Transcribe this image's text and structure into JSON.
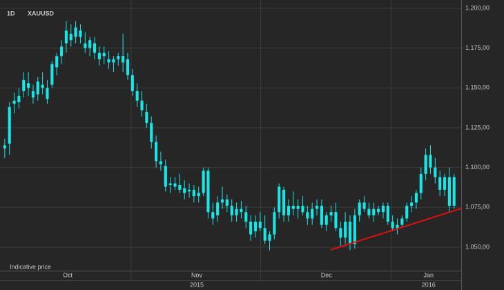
{
  "chart_data": {
    "type": "candlestick",
    "title": "XAUUSD",
    "timeframe": "1D",
    "note": "Indicative price",
    "color": "#19e6e6",
    "grid": true,
    "candles": [
      [
        1.112,
        1.118,
        1.106,
        1.114
      ],
      [
        1.115,
        1.141,
        1.108,
        1.138
      ],
      [
        1.14,
        1.147,
        1.134,
        1.142
      ],
      [
        1.141,
        1.15,
        1.137,
        1.145
      ],
      [
        1.148,
        1.16,
        1.144,
        1.155
      ],
      [
        1.153,
        1.16,
        1.145,
        1.15
      ],
      [
        1.148,
        1.152,
        1.14,
        1.144
      ],
      [
        1.146,
        1.157,
        1.142,
        1.154
      ],
      [
        1.152,
        1.16,
        1.146,
        1.15
      ],
      [
        1.143,
        1.155,
        1.14,
        1.15
      ],
      [
        1.152,
        1.167,
        1.15,
        1.165
      ],
      [
        1.163,
        1.172,
        1.158,
        1.17
      ],
      [
        1.17,
        1.18,
        1.165,
        1.176
      ],
      [
        1.178,
        1.192,
        1.172,
        1.186
      ],
      [
        1.184,
        1.19,
        1.176,
        1.18
      ],
      [
        1.182,
        1.192,
        1.178,
        1.188
      ],
      [
        1.186,
        1.19,
        1.178,
        1.182
      ],
      [
        1.178,
        1.185,
        1.172,
        1.175
      ],
      [
        1.175,
        1.182,
        1.17,
        1.18
      ],
      [
        1.178,
        1.182,
        1.168,
        1.172
      ],
      [
        1.172,
        1.176,
        1.164,
        1.168
      ],
      [
        1.17,
        1.176,
        1.165,
        1.172
      ],
      [
        1.168,
        1.173,
        1.162,
        1.166
      ],
      [
        1.166,
        1.17,
        1.16,
        1.168
      ],
      [
        1.168,
        1.172,
        1.164,
        1.17
      ],
      [
        1.166,
        1.184,
        1.16,
        1.17
      ],
      [
        1.168,
        1.172,
        1.155,
        1.158
      ],
      [
        1.158,
        1.162,
        1.145,
        1.148
      ],
      [
        1.148,
        1.153,
        1.138,
        1.142
      ],
      [
        1.142,
        1.148,
        1.132,
        1.136
      ],
      [
        1.135,
        1.14,
        1.125,
        1.128
      ],
      [
        1.128,
        1.132,
        1.112,
        1.116
      ],
      [
        1.116,
        1.12,
        1.1,
        1.104
      ],
      [
        1.104,
        1.11,
        1.098,
        1.102
      ],
      [
        1.101,
        1.105,
        1.085,
        1.088
      ],
      [
        1.089,
        1.094,
        1.084,
        1.09
      ],
      [
        1.09,
        1.094,
        1.086,
        1.088
      ],
      [
        1.089,
        1.096,
        1.084,
        1.086
      ],
      [
        1.087,
        1.092,
        1.08,
        1.084
      ],
      [
        1.085,
        1.09,
        1.081,
        1.086
      ],
      [
        1.086,
        1.089,
        1.078,
        1.082
      ],
      [
        1.082,
        1.088,
        1.078,
        1.084
      ],
      [
        1.084,
        1.1,
        1.082,
        1.098
      ],
      [
        1.098,
        1.1,
        1.068,
        1.072
      ],
      [
        1.072,
        1.078,
        1.064,
        1.068
      ],
      [
        1.07,
        1.082,
        1.066,
        1.078
      ],
      [
        1.078,
        1.088,
        1.074,
        1.08
      ],
      [
        1.08,
        1.083,
        1.072,
        1.076
      ],
      [
        1.076,
        1.08,
        1.066,
        1.07
      ],
      [
        1.07,
        1.078,
        1.066,
        1.074
      ],
      [
        1.074,
        1.079,
        1.068,
        1.072
      ],
      [
        1.072,
        1.076,
        1.062,
        1.066
      ],
      [
        1.066,
        1.07,
        1.054,
        1.058
      ],
      [
        1.06,
        1.07,
        1.056,
        1.066
      ],
      [
        1.066,
        1.072,
        1.06,
        1.062
      ],
      [
        1.062,
        1.07,
        1.052,
        1.054
      ],
      [
        1.054,
        1.06,
        1.048,
        1.058
      ],
      [
        1.058,
        1.075,
        1.055,
        1.072
      ],
      [
        1.072,
        1.09,
        1.068,
        1.088
      ],
      [
        1.086,
        1.088,
        1.066,
        1.07
      ],
      [
        1.07,
        1.08,
        1.066,
        1.076
      ],
      [
        1.076,
        1.085,
        1.07,
        1.074
      ],
      [
        1.074,
        1.08,
        1.068,
        1.076
      ],
      [
        1.076,
        1.082,
        1.07,
        1.072
      ],
      [
        1.072,
        1.076,
        1.064,
        1.068
      ],
      [
        1.068,
        1.078,
        1.064,
        1.074
      ],
      [
        1.074,
        1.08,
        1.07,
        1.076
      ],
      [
        1.076,
        1.08,
        1.062,
        1.064
      ],
      [
        1.064,
        1.072,
        1.06,
        1.07
      ],
      [
        1.07,
        1.076,
        1.066,
        1.072
      ],
      [
        1.072,
        1.078,
        1.06,
        1.062
      ],
      [
        1.062,
        1.066,
        1.05,
        1.056
      ],
      [
        1.056,
        1.072,
        1.052,
        1.066
      ],
      [
        1.066,
        1.07,
        1.048,
        1.052
      ],
      [
        1.052,
        1.074,
        1.049,
        1.07
      ],
      [
        1.07,
        1.08,
        1.066,
        1.078
      ],
      [
        1.078,
        1.082,
        1.072,
        1.074
      ],
      [
        1.074,
        1.078,
        1.068,
        1.07
      ],
      [
        1.07,
        1.078,
        1.066,
        1.074
      ],
      [
        1.074,
        1.076,
        1.07,
        1.072
      ],
      [
        1.072,
        1.078,
        1.068,
        1.076
      ],
      [
        1.076,
        1.078,
        1.064,
        1.066
      ],
      [
        1.066,
        1.07,
        1.06,
        1.062
      ],
      [
        1.062,
        1.068,
        1.058,
        1.064
      ],
      [
        1.064,
        1.07,
        1.062,
        1.068
      ],
      [
        1.068,
        1.078,
        1.066,
        1.076
      ],
      [
        1.076,
        1.082,
        1.072,
        1.078
      ],
      [
        1.078,
        1.086,
        1.074,
        1.084
      ],
      [
        1.084,
        1.1,
        1.08,
        1.096
      ],
      [
        1.096,
        1.112,
        1.092,
        1.108
      ],
      [
        1.108,
        1.114,
        1.096,
        1.1
      ],
      [
        1.1,
        1.106,
        1.09,
        1.094
      ],
      [
        1.094,
        1.098,
        1.082,
        1.086
      ],
      [
        1.086,
        1.096,
        1.082,
        1.094
      ],
      [
        1.094,
        1.1,
        1.072,
        1.076
      ],
      [
        1.076,
        1.096,
        1.074,
        1.094
      ]
    ],
    "xlim": [
      -1,
      96.5
    ],
    "ylim": [
      1.04,
      1.205
    ],
    "yticks": [
      {
        "value": 1.05,
        "label": "1.050,00"
      },
      {
        "value": 1.075,
        "label": "1.075,00"
      },
      {
        "value": 1.1,
        "label": "1.100,00"
      },
      {
        "value": 1.125,
        "label": "1.125,00"
      },
      {
        "value": 1.15,
        "label": "1.150,00"
      },
      {
        "value": 1.175,
        "label": "1.175,00"
      },
      {
        "value": 1.2,
        "label": "1.200,00"
      }
    ],
    "xticks": [
      {
        "value": 13.3,
        "label": "Oct"
      },
      {
        "value": 40.6,
        "label": "Nov"
      },
      {
        "value": 68,
        "label": "Dec"
      },
      {
        "value": 89.6,
        "label": "Jan"
      }
    ],
    "xgrid": [
      26.7,
      54.1,
      81.7
    ],
    "year_ticks": [
      {
        "value": 40.6,
        "label": "2015"
      },
      {
        "value": 89.6,
        "label": "2016"
      }
    ],
    "trend_line": {
      "x": [
        68.9,
        96.5
      ],
      "y": [
        1.0483,
        1.0743
      ],
      "color": "#e01010"
    }
  }
}
